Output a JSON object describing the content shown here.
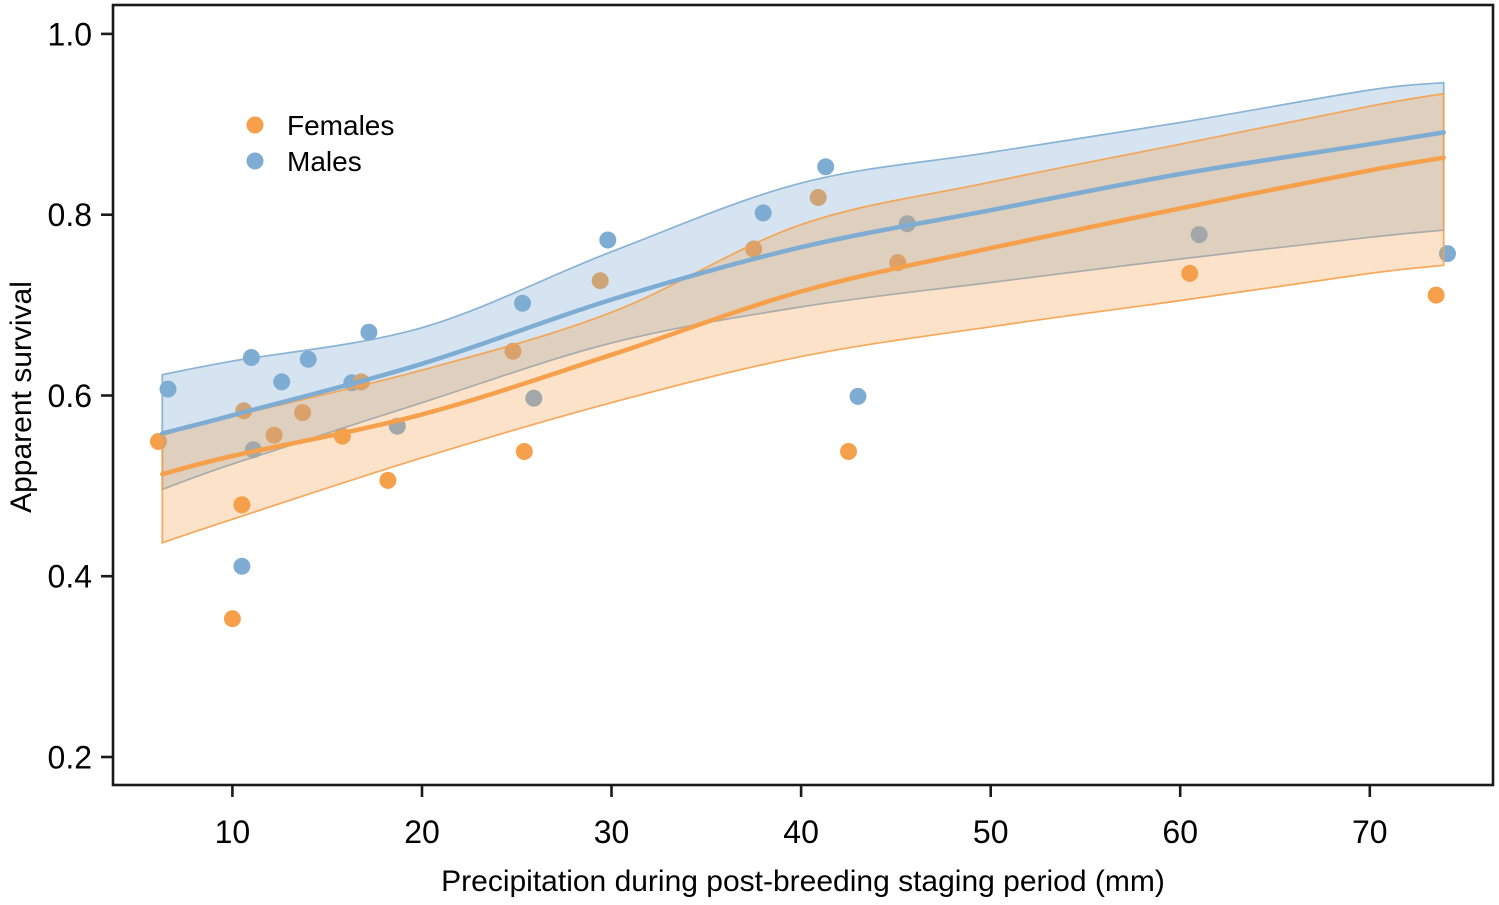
{
  "chart_data": {
    "type": "scatter",
    "title": "",
    "xlabel": "Precipitation during post-breeding staging period (mm)",
    "ylabel": "Apparent survival",
    "xlim": [
      3.7,
      76.5
    ],
    "ylim": [
      0.169,
      1.032
    ],
    "x_ticks": [
      10,
      20,
      30,
      40,
      50,
      60,
      70
    ],
    "x_tick_labels": [
      "10",
      "20",
      "30",
      "40",
      "50",
      "60",
      "70"
    ],
    "y_ticks": [
      0.2,
      0.4,
      0.6,
      0.8,
      1.0
    ],
    "y_tick_labels": [
      "0.2",
      "0.4",
      "0.6",
      "0.8",
      "1.0"
    ],
    "grid": false,
    "panel_background": "#FFFFFF",
    "axis_color": "#1A1A1A",
    "legend": {
      "position": "inside-top-left",
      "entries": [
        {
          "label": "Females",
          "color": "#F6A04B"
        },
        {
          "label": "Males",
          "color": "#7FACD2"
        }
      ]
    },
    "series": [
      {
        "name": "Females",
        "color": "#F6A04B",
        "band_alpha": 0.3,
        "marker_radius": 8.5,
        "points": [
          [
            6.1,
            0.549
          ],
          [
            10.0,
            0.353
          ],
          [
            10.5,
            0.479
          ],
          [
            10.6,
            0.583
          ],
          [
            12.2,
            0.556
          ],
          [
            13.7,
            0.581
          ],
          [
            15.8,
            0.555
          ],
          [
            16.8,
            0.615
          ],
          [
            18.2,
            0.506
          ],
          [
            24.8,
            0.649
          ],
          [
            25.4,
            0.538
          ],
          [
            29.4,
            0.727
          ],
          [
            37.5,
            0.762
          ],
          [
            40.9,
            0.819
          ],
          [
            42.5,
            0.538
          ],
          [
            45.1,
            0.747
          ],
          [
            60.5,
            0.735
          ],
          [
            73.5,
            0.711
          ]
        ],
        "fit": {
          "x": [
            6.3,
            10,
            20,
            30,
            40,
            50,
            60,
            70,
            73.9
          ],
          "line": [
            0.513,
            0.533,
            0.579,
            0.645,
            0.715,
            0.763,
            0.807,
            0.849,
            0.863
          ],
          "upper": [
            0.556,
            0.577,
            0.628,
            0.692,
            0.789,
            0.836,
            0.878,
            0.92,
            0.934
          ],
          "lower": [
            0.437,
            0.463,
            0.531,
            0.592,
            0.643,
            0.676,
            0.705,
            0.735,
            0.744
          ]
        }
      },
      {
        "name": "Males",
        "color": "#7FACD2",
        "band_alpha": 0.33,
        "marker_radius": 8.5,
        "points": [
          [
            6.6,
            0.607
          ],
          [
            10.5,
            0.411
          ],
          [
            11.0,
            0.642
          ],
          [
            11.1,
            0.54
          ],
          [
            12.6,
            0.615
          ],
          [
            14.0,
            0.64
          ],
          [
            16.3,
            0.614
          ],
          [
            17.2,
            0.67
          ],
          [
            18.7,
            0.566
          ],
          [
            25.3,
            0.702
          ],
          [
            25.9,
            0.597
          ],
          [
            29.8,
            0.772
          ],
          [
            38.0,
            0.802
          ],
          [
            41.3,
            0.853
          ],
          [
            43.0,
            0.599
          ],
          [
            45.6,
            0.79
          ],
          [
            61.0,
            0.778
          ],
          [
            74.1,
            0.757
          ]
        ],
        "fit": {
          "x": [
            6.3,
            10,
            20,
            30,
            40,
            50,
            60,
            70,
            73.9
          ],
          "line": [
            0.558,
            0.578,
            0.635,
            0.706,
            0.764,
            0.805,
            0.845,
            0.878,
            0.891
          ],
          "upper": [
            0.623,
            0.638,
            0.675,
            0.759,
            0.835,
            0.869,
            0.902,
            0.938,
            0.946
          ],
          "lower": [
            0.496,
            0.524,
            0.592,
            0.658,
            0.698,
            0.725,
            0.751,
            0.775,
            0.783
          ]
        }
      }
    ]
  }
}
